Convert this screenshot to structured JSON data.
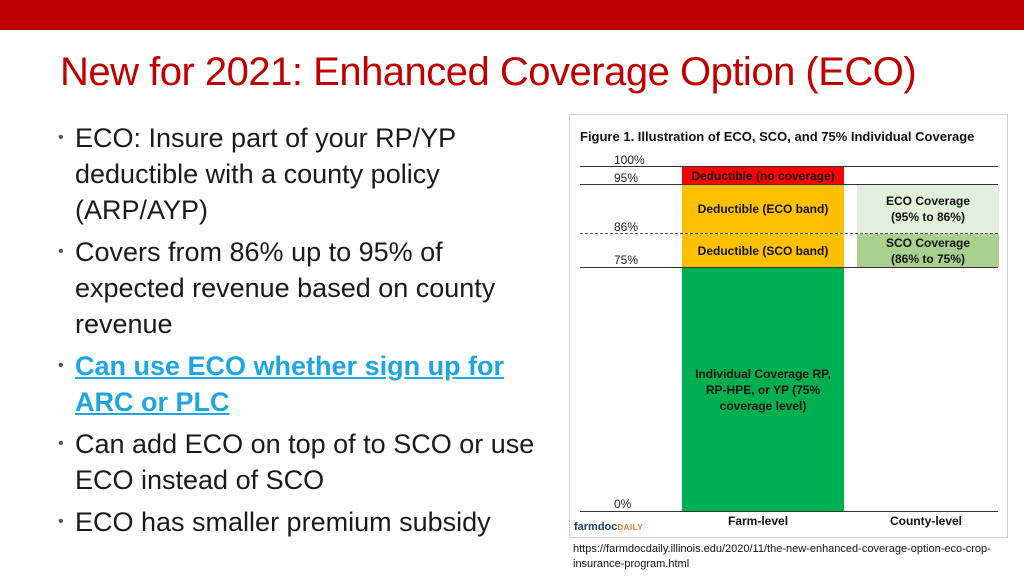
{
  "slide": {
    "title": "New for 2021: Enhanced Coverage Option (ECO)",
    "accent_color": "#c00000",
    "link_color": "#1fa6e0",
    "bullet_glyph": "•",
    "bullets": [
      "ECO: Insure part of your RP/YP deductible with a county policy (ARP/AYP)",
      "Covers from 86% up to 95% of expected revenue based on county revenue",
      "Can use ECO whether sign up for ARC or PLC",
      "Can add ECO on top of to SCO or use ECO instead of SCO",
      "ECO has smaller premium subsidy"
    ],
    "source_url": "https://farmdocdaily.illinois.edu/2020/11/the-new-enhanced-coverage-option-eco-crop-insurance-program.html"
  },
  "figure": {
    "title": "Figure 1. Illustration of ECO, SCO, and 75% Individual Coverage",
    "levels": [
      "100%",
      "95%",
      "86%",
      "75%",
      "0%"
    ],
    "farm_bands": {
      "deductible_no_coverage": "Deductible (no coverage)",
      "deductible_eco_band": "Deductible (ECO band)",
      "deductible_sco_band": "Deductible (SCO band)",
      "individual_coverage": "Individual Coverage RP, RP-HPE, or YP (75% coverage level)"
    },
    "county_bands": {
      "eco_coverage": "ECO Coverage (95% to 86%)",
      "sco_coverage": "SCO Coverage (86% to 75%)"
    },
    "column_labels": {
      "farm": "Farm-level",
      "county": "County-level"
    },
    "logo": {
      "brand": "farmdoc",
      "suffix": "DAILY"
    },
    "colors": {
      "red": "#ff0000",
      "yellow": "#ffc000",
      "green": "#00b050",
      "light_green": "#e2efda",
      "sco_green": "#a9d08e"
    }
  }
}
